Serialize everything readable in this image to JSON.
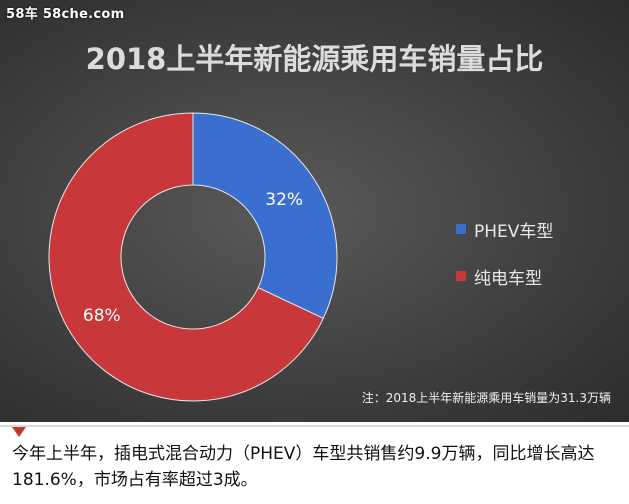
{
  "watermark": "58车  58che.com",
  "note": "注：2018上半年新能源乘用车销量为31.3万辆",
  "caption": "今年上半年，插电式混合动力（PHEV）车型共销售约9.9万辆，同比增长高达181.6%，市场占有率超过3成。",
  "colors": {
    "PHEV": "#3a6fd0",
    "EV": "#c8383b"
  },
  "chart_data": {
    "type": "pie",
    "title": "2018上半年新能源乘用车销量占比",
    "categories": [
      "PHEV车型",
      "纯电车型"
    ],
    "values": [
      32,
      68
    ],
    "labels": [
      "32%",
      "68%"
    ],
    "legend_position": "right",
    "donut": true
  }
}
